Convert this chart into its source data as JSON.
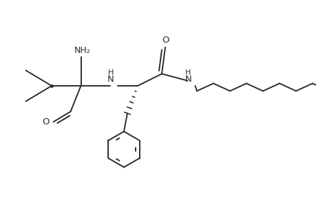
{
  "background_color": "#ffffff",
  "line_color": "#2a2a2a",
  "line_width": 1.4,
  "font_size": 8.5,
  "fig_width": 4.6,
  "fig_height": 3.0,
  "dpi": 100,
  "xlim": [
    0,
    9.2
  ],
  "ylim": [
    0,
    6.0
  ],
  "NH2_text": "NH₂",
  "O_text": "O",
  "H_text": "H",
  "N_text": "N"
}
